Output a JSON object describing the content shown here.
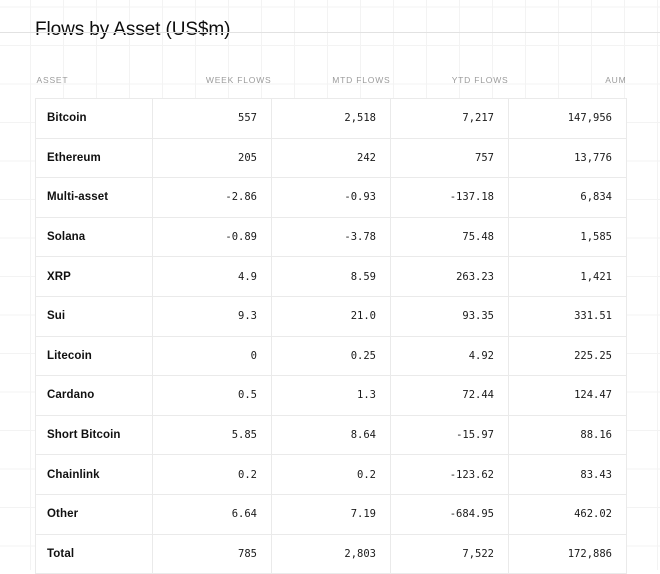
{
  "page": {
    "title": "Flows by Asset (US$m)"
  },
  "colors": {
    "background": "#ffffff",
    "title_text": "#0d0d0d",
    "header_text": "#9b9b9b",
    "number_text": "#1a1a1a",
    "asset_text": "#101010",
    "table_border": "#eaeaea",
    "grid_line": "#f3f3f3",
    "divider": "#e2e2e2"
  },
  "chart_data": {
    "type": "table",
    "title": "Flows by Asset (US$m)",
    "columns": [
      "ASSET",
      "WEEK FLOWS",
      "MTD FLOWS",
      "YTD FLOWS",
      "AUM"
    ],
    "rows": [
      [
        "Bitcoin",
        "557",
        "2,518",
        "7,217",
        "147,956"
      ],
      [
        "Ethereum",
        "205",
        "242",
        "757",
        "13,776"
      ],
      [
        "Multi-asset",
        "-2.86",
        "-0.93",
        "-137.18",
        "6,834"
      ],
      [
        "Solana",
        "-0.89",
        "-3.78",
        "75.48",
        "1,585"
      ],
      [
        "XRP",
        "4.9",
        "8.59",
        "263.23",
        "1,421"
      ],
      [
        "Sui",
        "9.3",
        "21.0",
        "93.35",
        "331.51"
      ],
      [
        "Litecoin",
        "0",
        "0.25",
        "4.92",
        "225.25"
      ],
      [
        "Cardano",
        "0.5",
        "1.3",
        "72.44",
        "124.47"
      ],
      [
        "Short Bitcoin",
        "5.85",
        "8.64",
        "-15.97",
        "88.16"
      ],
      [
        "Chainlink",
        "0.2",
        "0.2",
        "-123.62",
        "83.43"
      ],
      [
        "Other",
        "6.64",
        "7.19",
        "-684.95",
        "462.02"
      ],
      [
        "Total",
        "785",
        "2,803",
        "7,522",
        "172,886"
      ]
    ]
  }
}
